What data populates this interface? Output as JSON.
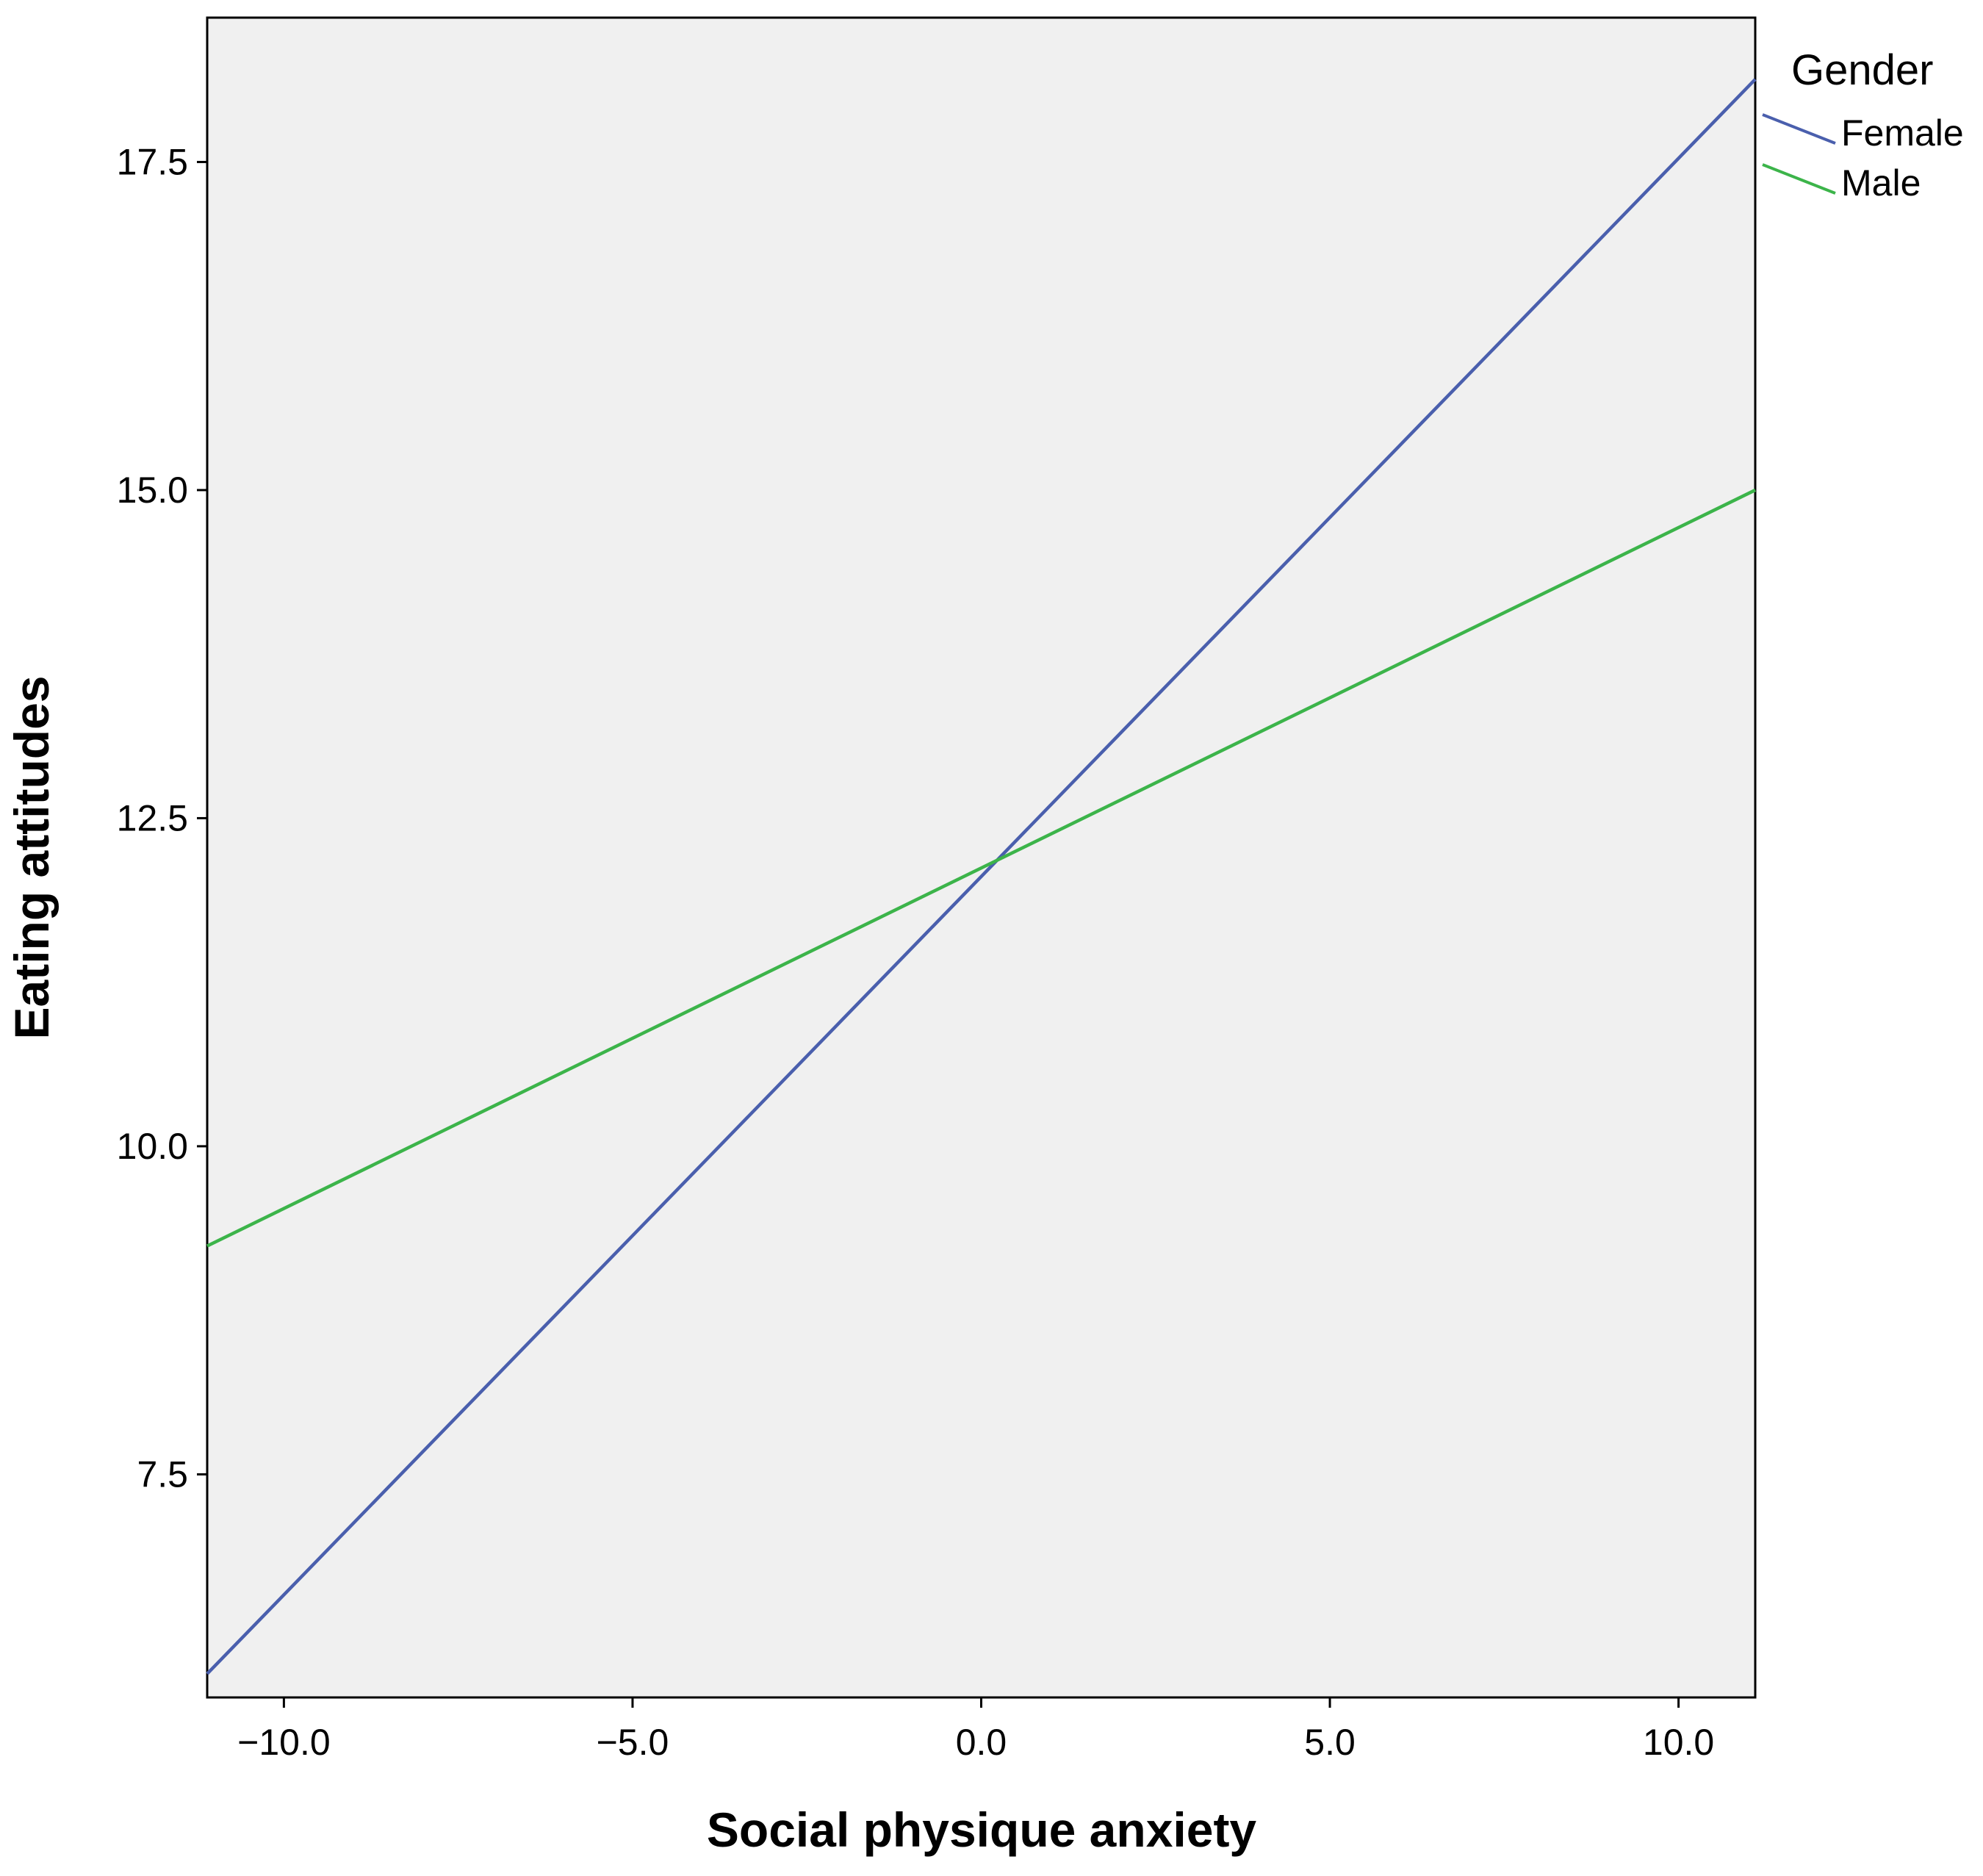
{
  "chart_data": {
    "type": "line",
    "title": "",
    "xlabel": "Social physique anxiety",
    "ylabel": "Eating attitudes",
    "xlim": [
      -11.1,
      11.1
    ],
    "ylim": [
      5.8,
      18.6
    ],
    "x_ticks": [
      -10.0,
      -5.0,
      0.0,
      5.0,
      10.0
    ],
    "x_tick_labels": [
      "−10.0",
      "−5.0",
      "0.0",
      "5.0",
      "10.0"
    ],
    "y_ticks": [
      7.5,
      10.0,
      12.5,
      15.0,
      17.5
    ],
    "y_tick_labels": [
      "7.5",
      "10.0",
      "12.5",
      "15.0",
      "17.5"
    ],
    "grid": false,
    "legend": {
      "title": "Gender",
      "position": "right"
    },
    "series": [
      {
        "name": "Female",
        "color": "#4a5fad",
        "x": [
          -11.1,
          11.1
        ],
        "y": [
          5.98,
          18.13
        ]
      },
      {
        "name": "Male",
        "color": "#3cb44a",
        "x": [
          -11.1,
          11.1
        ],
        "y": [
          9.24,
          15.0
        ]
      }
    ]
  }
}
